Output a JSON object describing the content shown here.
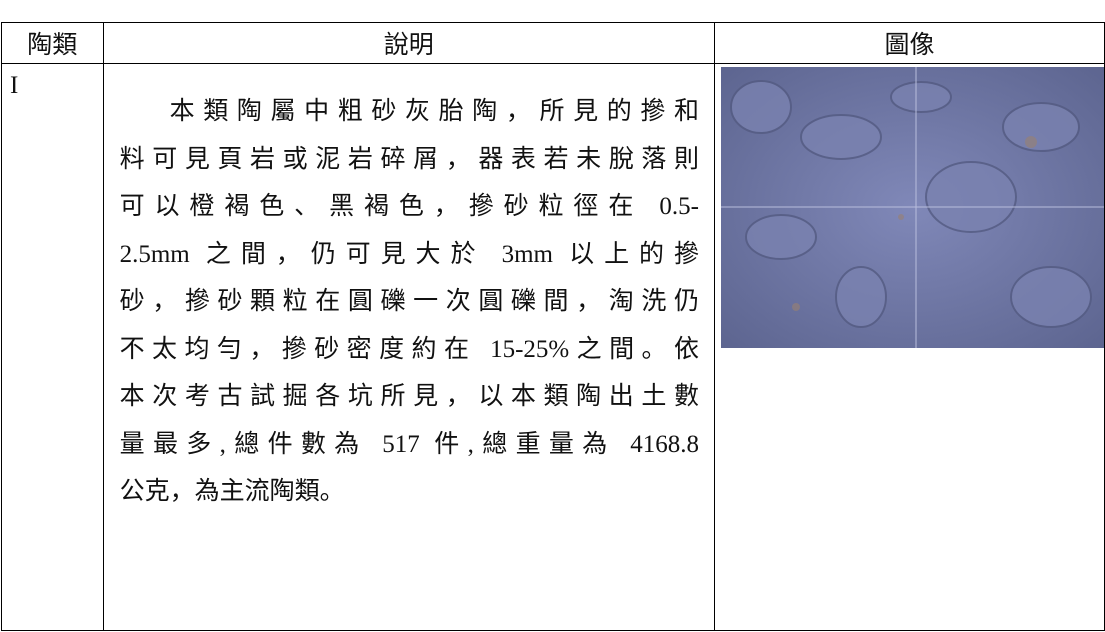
{
  "table": {
    "header": [
      "陶類",
      "說明",
      "圖像"
    ],
    "rows": [
      {
        "type": "I",
        "description": [
          "本類陶屬中粗砂灰胎陶，所見的摻和",
          "料可見頁岩或泥岩碎屑，器表若未脫落則",
          "可以橙褐色、黑褐色，摻砂粒徑在 0.5-",
          "2.5mm 之間，仍可見大於 3mm 以上的摻",
          "砂，摻砂顆粒在圓礫一次圓礫間，淘洗仍",
          "不太均勻，摻砂密度約在 15-25%之間。依",
          "本次考古試掘各坑所見，以本類陶出土數",
          "量最多,總件數為 517 件,總重量為 4168.8",
          "公克，為主流陶類。"
        ]
      }
    ]
  }
}
